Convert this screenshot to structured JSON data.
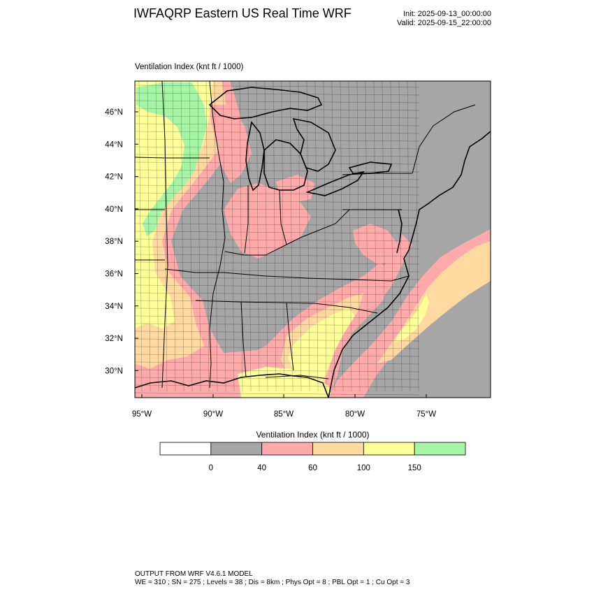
{
  "header": {
    "title": "IWFAQRP Eastern US Real Time WRF",
    "init": "Init: 2025-09-13_00:00:00",
    "valid": "Valid: 2025-09-15_22:00:00"
  },
  "map": {
    "field_title": "Ventilation Index   (knt ft / 1000)",
    "lat_labels": [
      "46°N",
      "44°N",
      "42°N",
      "40°N",
      "38°N",
      "36°N",
      "34°N",
      "32°N",
      "30°N"
    ],
    "lon_labels": [
      "95°W",
      "90°W",
      "85°W",
      "80°W",
      "75°W"
    ],
    "colors": {
      "land_low": "#a6a6a6",
      "pink": "#ffaaaa",
      "orange": "#ffd9a0",
      "yellow": "#ffff99",
      "green": "#a6f5a6",
      "boundary": "#000000"
    }
  },
  "colorbar": {
    "title": "Ventilation Index  (knt ft / 1000)",
    "bins": [
      {
        "color": "#ffffff"
      },
      {
        "color": "#a6a6a6"
      },
      {
        "color": "#ffaaaa"
      },
      {
        "color": "#ffd9a0"
      },
      {
        "color": "#ffff99"
      },
      {
        "color": "#a6f5a6"
      }
    ],
    "tick_labels": [
      "0",
      "40",
      "60",
      "100",
      "150"
    ]
  },
  "footer": {
    "line1": "OUTPUT FROM WRF V4.6.1 MODEL",
    "line2": "WE = 310 ; SN = 275 ; Levels = 38 ; Dis = 8km ; Phys Opt = 8 ; PBL Opt = 1 ; Cu Opt = 3"
  }
}
